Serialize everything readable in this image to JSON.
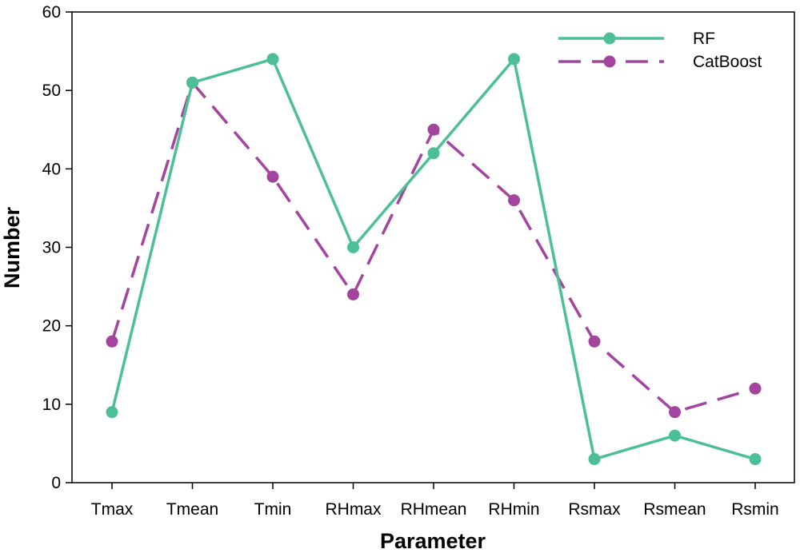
{
  "chart_data": {
    "type": "line",
    "xlabel": "Parameter",
    "ylabel": "Number",
    "categories": [
      "Tmax",
      "Tmean",
      "Tmin",
      "RHmax",
      "RHmean",
      "RHmin",
      "Rsmax",
      "Rsmean",
      "Rsmin"
    ],
    "ylim": [
      0,
      60
    ],
    "yticks": [
      0,
      10,
      20,
      30,
      40,
      50,
      60
    ],
    "grid": false,
    "legend": "top-right",
    "series": [
      {
        "name": "RF",
        "values": [
          9,
          51,
          54,
          30,
          42,
          54,
          3,
          6,
          3
        ],
        "color": "#4dbf97",
        "style": "solid",
        "marker": "circle"
      },
      {
        "name": "CatBoost",
        "values": [
          18,
          51,
          39,
          24,
          45,
          36,
          18,
          9,
          12
        ],
        "color": "#a3449f",
        "style": "dashed",
        "marker": "circle"
      }
    ]
  }
}
